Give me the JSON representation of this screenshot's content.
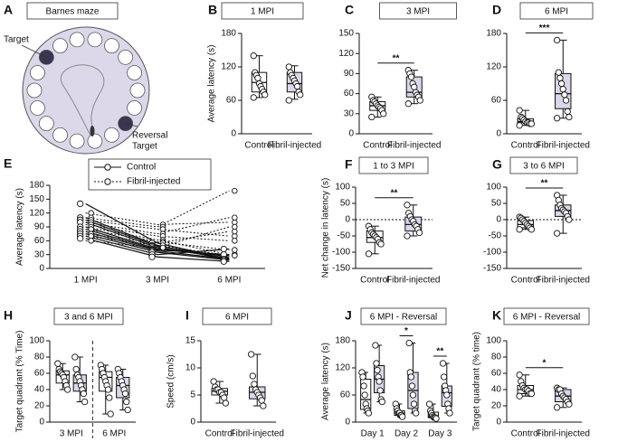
{
  "diagram": {
    "letter": "A",
    "title": "Barnes maze",
    "target": "Target",
    "reversal_target": [
      "Reversal",
      "Target"
    ]
  },
  "chart_data": [
    {
      "type": "box",
      "letter": "B",
      "title": "1 MPI",
      "ylabel": "Average latency (s)",
      "ylim": [
        0,
        180
      ],
      "yticks": [
        0,
        60,
        120,
        180
      ],
      "categories": [
        "Control",
        "Fibril-injected"
      ],
      "boxes": [
        {
          "color": "#ffffff",
          "stats": [
            65,
            75,
            92,
            110,
            140
          ],
          "points": [
            140,
            110,
            105,
            100,
            90,
            85,
            80,
            75,
            70,
            65
          ]
        },
        {
          "color": "#dcd6ea",
          "stats": [
            62,
            75,
            90,
            110,
            122
          ],
          "points": [
            120,
            110,
            105,
            100,
            95,
            90,
            85,
            75,
            70,
            60
          ]
        }
      ]
    },
    {
      "type": "box",
      "letter": "C",
      "title": "3 MPI",
      "ylabel": "",
      "ylim": [
        0,
        150
      ],
      "yticks": [
        0,
        30,
        60,
        90,
        120,
        150
      ],
      "categories": [
        "Control",
        "Fibril-injected"
      ],
      "annotation": "**",
      "boxes": [
        {
          "color": "#ffffff",
          "stats": [
            25,
            35,
            42,
            48,
            55
          ],
          "points": [
            55,
            50,
            48,
            45,
            42,
            40,
            38,
            35,
            30,
            25
          ]
        },
        {
          "color": "#dcd6ea",
          "stats": [
            45,
            55,
            62,
            85,
            95
          ],
          "points": [
            95,
            90,
            85,
            75,
            70,
            62,
            58,
            55,
            50,
            45
          ]
        }
      ]
    },
    {
      "type": "box",
      "letter": "D",
      "title": "6 MPI",
      "ylabel": "",
      "ylim": [
        0,
        180
      ],
      "yticks": [
        0,
        60,
        120,
        180
      ],
      "categories": [
        "Control",
        "Fibril-injected"
      ],
      "annotation": "***",
      "boxes": [
        {
          "color": "#ffffff",
          "stats": [
            15,
            20,
            22,
            27,
            42
          ],
          "points": [
            42,
            30,
            28,
            25,
            22,
            20,
            20,
            18,
            18,
            15
          ]
        },
        {
          "color": "#dcd6ea",
          "stats": [
            28,
            45,
            72,
            108,
            168
          ],
          "points": [
            168,
            110,
            100,
            90,
            80,
            70,
            60,
            40,
            30,
            28
          ]
        }
      ]
    },
    {
      "type": "line",
      "letter": "E",
      "ylabel": "Average latency (s)",
      "ylim": [
        0,
        180
      ],
      "yticks": [
        0,
        30,
        60,
        90,
        120,
        150,
        180
      ],
      "categories": [
        "1 MPI",
        "3 MPI",
        "6 MPI"
      ],
      "series": [
        {
          "name": "Control",
          "style": "solid",
          "lines": [
            [
              140,
              55,
              20
            ],
            [
              110,
              50,
              18
            ],
            [
              105,
              48,
              25
            ],
            [
              100,
              45,
              22
            ],
            [
              90,
              42,
              28
            ],
            [
              85,
              40,
              30
            ],
            [
              80,
              38,
              20
            ],
            [
              75,
              35,
              18
            ],
            [
              70,
              30,
              42
            ],
            [
              65,
              25,
              15
            ]
          ]
        },
        {
          "name": "Fibril-injected",
          "style": "dotted",
          "lines": [
            [
              120,
              95,
              100
            ],
            [
              110,
              90,
              168
            ],
            [
              105,
              85,
              70
            ],
            [
              100,
              75,
              110
            ],
            [
              95,
              70,
              60
            ],
            [
              90,
              62,
              30
            ],
            [
              85,
              58,
              40
            ],
            [
              75,
              55,
              80
            ],
            [
              70,
              50,
              28
            ],
            [
              60,
              45,
              90
            ]
          ]
        }
      ]
    },
    {
      "type": "box",
      "letter": "F",
      "title": "1 to 3 MPI",
      "ylabel": "Net change in latency (s)",
      "ylim": [
        -150,
        100
      ],
      "yticks": [
        -150,
        -100,
        -50,
        0,
        50,
        100
      ],
      "zero_line": true,
      "categories": [
        "Control",
        "Fibril-injected"
      ],
      "annotation": "**",
      "boxes": [
        {
          "color": "#ffffff",
          "stats": [
            -105,
            -70,
            -55,
            -35,
            -20
          ],
          "points": [
            -20,
            -30,
            -40,
            -45,
            -50,
            -55,
            -60,
            -70,
            -75,
            -105
          ]
        },
        {
          "color": "#dcd6ea",
          "stats": [
            -50,
            -35,
            -15,
            8,
            45
          ],
          "points": [
            45,
            20,
            10,
            0,
            -5,
            -15,
            -20,
            -30,
            -40,
            -50
          ]
        }
      ]
    },
    {
      "type": "box",
      "letter": "G",
      "title": "3 to 6 MPI",
      "ylabel": "",
      "ylim": [
        -150,
        100
      ],
      "yticks": [
        -150,
        -100,
        -50,
        0,
        50,
        100
      ],
      "zero_line": true,
      "categories": [
        "Control",
        "Fibril-injected"
      ],
      "annotation": "**",
      "boxes": [
        {
          "color": "#ffffff",
          "stats": [
            -30,
            -25,
            -15,
            -3,
            8
          ],
          "points": [
            8,
            5,
            0,
            -5,
            -10,
            -15,
            -20,
            -25,
            -30,
            -30
          ]
        },
        {
          "color": "#dcd6ea",
          "stats": [
            -42,
            10,
            28,
            45,
            75
          ],
          "points": [
            75,
            60,
            45,
            35,
            30,
            25,
            20,
            10,
            0,
            -42
          ]
        }
      ]
    },
    {
      "type": "box",
      "letter": "H",
      "title": "3 and 6 MPI",
      "ylabel": "Target quadrant (% Time)",
      "ylim": [
        0,
        100
      ],
      "yticks": [
        0,
        20,
        40,
        60,
        80,
        100
      ],
      "divider": true,
      "categories": [
        "3 MPI",
        "6 MPI"
      ],
      "boxes": [
        {
          "color": "#ffffff",
          "stats": [
            40,
            48,
            58,
            63,
            72
          ],
          "points": [
            72,
            65,
            62,
            60,
            58,
            55,
            50,
            45,
            40
          ]
        },
        {
          "color": "#dcd6ea",
          "stats": [
            25,
            38,
            48,
            58,
            80
          ],
          "points": [
            80,
            65,
            58,
            55,
            50,
            45,
            40,
            35,
            25
          ]
        },
        {
          "color": "#ffffff",
          "stats": [
            10,
            38,
            55,
            62,
            70
          ],
          "points": [
            70,
            65,
            60,
            55,
            50,
            45,
            40,
            30,
            10
          ]
        },
        {
          "color": "#dcd6ea",
          "stats": [
            15,
            30,
            45,
            55,
            65
          ],
          "points": [
            65,
            60,
            55,
            50,
            45,
            40,
            35,
            25,
            15
          ]
        }
      ]
    },
    {
      "type": "box",
      "letter": "I",
      "title": "6 MPI",
      "ylabel": "Speed (cm/s)",
      "ylim": [
        0,
        15
      ],
      "yticks": [
        0,
        5,
        10,
        15
      ],
      "categories": [
        "Control",
        "Fibril-injected"
      ],
      "boxes": [
        {
          "color": "#ffffff",
          "stats": [
            3.5,
            5,
            5.7,
            6.2,
            7.5
          ],
          "points": [
            7.5,
            6.5,
            6,
            6,
            5.5,
            5.5,
            5,
            4.5,
            3.5
          ]
        },
        {
          "color": "#dcd6ea",
          "stats": [
            3,
            4.3,
            5.5,
            6.5,
            12.5
          ],
          "points": [
            12.5,
            8.5,
            7,
            6,
            5.5,
            5,
            4.5,
            4,
            3
          ]
        }
      ]
    },
    {
      "type": "box",
      "letter": "J",
      "title": "6 MPI - Reversal",
      "ylabel": "Average latency (s)",
      "ylim": [
        0,
        180
      ],
      "yticks": [
        0,
        60,
        120,
        180
      ],
      "categories": [
        "Day 1",
        "Day 2",
        "Day 3"
      ],
      "annotations": [
        null,
        "*",
        "**"
      ],
      "boxes": [
        {
          "color": "#ffffff",
          "stats": [
            20,
            28,
            50,
            95,
            110
          ],
          "points": [
            110,
            100,
            80,
            60,
            40,
            30,
            25,
            20
          ]
        },
        {
          "color": "#dcd6ea",
          "stats": [
            45,
            65,
            95,
            125,
            170
          ],
          "points": [
            170,
            130,
            115,
            100,
            90,
            70,
            50,
            45
          ]
        },
        {
          "color": "#ffffff",
          "stats": [
            12,
            15,
            20,
            25,
            40
          ],
          "points": [
            40,
            30,
            25,
            20,
            20,
            15,
            15,
            12
          ]
        },
        {
          "color": "#dcd6ea",
          "stats": [
            20,
            30,
            70,
            110,
            175
          ],
          "points": [
            175,
            110,
            100,
            80,
            60,
            40,
            25,
            20
          ]
        },
        {
          "color": "#ffffff",
          "stats": [
            8,
            10,
            12,
            22,
            40
          ],
          "points": [
            40,
            25,
            20,
            15,
            12,
            10,
            10,
            8
          ]
        },
        {
          "color": "#dcd6ea",
          "stats": [
            20,
            35,
            65,
            80,
            130
          ],
          "points": [
            130,
            100,
            80,
            70,
            60,
            40,
            30,
            20
          ]
        }
      ]
    },
    {
      "type": "box",
      "letter": "K",
      "title": "6 MPI - Reversal",
      "ylabel": "Target quadrant (% time)",
      "ylim": [
        0,
        100
      ],
      "yticks": [
        0,
        20,
        40,
        60,
        80,
        100
      ],
      "categories": [
        "Control",
        "Fibril-injected"
      ],
      "annotation": "*",
      "boxes": [
        {
          "color": "#ffffff",
          "stats": [
            32,
            35,
            40,
            45,
            58
          ],
          "points": [
            58,
            50,
            45,
            42,
            40,
            40,
            38,
            35,
            35,
            32
          ]
        },
        {
          "color": "#dcd6ea",
          "stats": [
            18,
            25,
            32,
            40,
            42
          ],
          "points": [
            42,
            40,
            40,
            35,
            32,
            30,
            28,
            25,
            22,
            18
          ]
        }
      ]
    }
  ]
}
